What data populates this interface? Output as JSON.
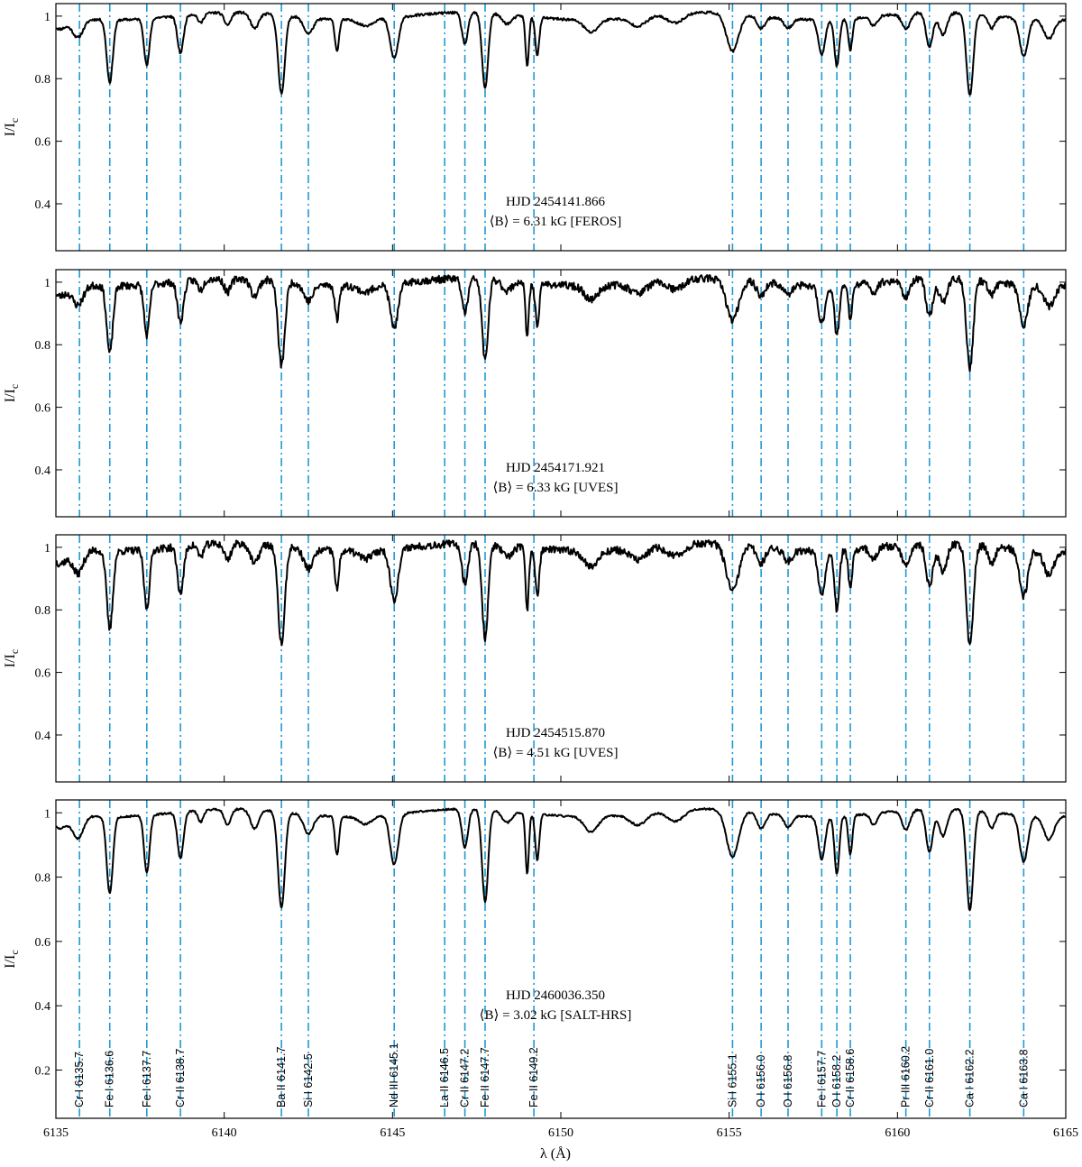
{
  "chart_data": {
    "type": "line",
    "xlabel": "λ (Å)",
    "ylabel": "I/I",
    "ylabel_subscript": "c",
    "xlim": [
      6135,
      6165
    ],
    "x_ticks": [
      6135,
      6140,
      6145,
      6150,
      6155,
      6160,
      6165
    ],
    "x_tick_labels": [
      "6135",
      "6140",
      "6145",
      "6150",
      "6155",
      "6160",
      "6165"
    ],
    "line_color": "#1e9ad6",
    "spectrum_color": "#000000",
    "lines": [
      {
        "label": "Cr I 6135.7",
        "wavelength": 6135.7
      },
      {
        "label": "Fe I 6136.6",
        "wavelength": 6136.6
      },
      {
        "label": "Fe I 6137.7",
        "wavelength": 6137.7
      },
      {
        "label": "Cr II 6138.7",
        "wavelength": 6138.7
      },
      {
        "label": "Ba II 6141.7",
        "wavelength": 6141.7
      },
      {
        "label": "Si I 6142.5",
        "wavelength": 6142.5
      },
      {
        "label": "Nd III 6145.1",
        "wavelength": 6145.05
      },
      {
        "label": "La II 6146.5",
        "wavelength": 6146.55
      },
      {
        "label": "Cr II 6147.2",
        "wavelength": 6147.15
      },
      {
        "label": "Fe II 6147.7",
        "wavelength": 6147.75
      },
      {
        "label": "Fe II 6149.2",
        "wavelength": 6149.2
      },
      {
        "label": "Si I 6155.1",
        "wavelength": 6155.1
      },
      {
        "label": "O I 6156.0",
        "wavelength": 6155.95
      },
      {
        "label": "O I 6156.8",
        "wavelength": 6156.75
      },
      {
        "label": "Fe I 6157.7",
        "wavelength": 6157.75
      },
      {
        "label": "O I 6158.2",
        "wavelength": 6158.2
      },
      {
        "label": "Cr II 6158.6",
        "wavelength": 6158.6
      },
      {
        "label": "Pr III 6160.2",
        "wavelength": 6160.25
      },
      {
        "label": "Cr II 6161.0",
        "wavelength": 6160.95
      },
      {
        "label": "Ca I 6162.2",
        "wavelength": 6162.15
      },
      {
        "label": "Ca I 6163.8",
        "wavelength": 6163.75
      }
    ],
    "panels": [
      {
        "id": "feros",
        "hjd_text": "HJD 2454141.866",
        "field_text": "⟨B⟩ = 6.31 kG [FEROS]",
        "ylim": [
          0.25,
          1.04
        ],
        "y_ticks": [
          0.4,
          0.6,
          0.8,
          1
        ],
        "y_tick_labels": [
          "0.4",
          "0.6",
          "0.8",
          "1"
        ],
        "noise": 0.004,
        "seed": 11,
        "depth_scale": 1.0,
        "line_label_short": true
      },
      {
        "id": "uves1",
        "hjd_text": "HJD 2454171.921",
        "field_text": "⟨B⟩ = 6.33 kG [UVES]",
        "ylim": [
          0.25,
          1.04
        ],
        "y_ticks": [
          0.4,
          0.6,
          0.8,
          1
        ],
        "y_tick_labels": [
          "0.4",
          "0.6",
          "0.8",
          "1"
        ],
        "noise": 0.012,
        "seed": 23,
        "depth_scale": 1.08,
        "line_label_short": true
      },
      {
        "id": "uves2",
        "hjd_text": "HJD 2454515.870",
        "field_text": "⟨B⟩ = 4.51 kG [UVES]",
        "ylim": [
          0.25,
          1.04
        ],
        "y_ticks": [
          0.4,
          0.6,
          0.8,
          1
        ],
        "y_tick_labels": [
          "0.4",
          "0.6",
          "0.8",
          "1"
        ],
        "noise": 0.012,
        "seed": 37,
        "depth_scale": 1.25,
        "line_label_short": true
      },
      {
        "id": "salt",
        "hjd_text": "HJD 2460036.350",
        "field_text": "⟨B⟩ = 3.02 kG [SALT-HRS]",
        "ylim": [
          0.05,
          1.04
        ],
        "y_ticks": [
          0.2,
          0.4,
          0.6,
          0.8,
          1
        ],
        "y_tick_labels": [
          "0.2",
          "0.4",
          "0.6",
          "0.8",
          "1"
        ],
        "noise": 0.003,
        "seed": 51,
        "depth_scale": 1.2,
        "line_label_short": false
      }
    ],
    "absorption_features": [
      [
        6135.1,
        0.04,
        0.22
      ],
      [
        6135.65,
        0.06,
        0.16
      ],
      [
        6136.6,
        0.2,
        0.09
      ],
      [
        6137.7,
        0.15,
        0.08
      ],
      [
        6138.7,
        0.12,
        0.09
      ],
      [
        6139.3,
        0.03,
        0.08
      ],
      [
        6140.1,
        0.04,
        0.1
      ],
      [
        6140.9,
        0.05,
        0.12
      ],
      [
        6141.7,
        0.25,
        0.1
      ],
      [
        6142.5,
        0.05,
        0.14
      ],
      [
        6143.35,
        0.1,
        0.06
      ],
      [
        6144.2,
        0.02,
        0.2
      ],
      [
        6145.05,
        0.13,
        0.12
      ],
      [
        6147.15,
        0.1,
        0.09
      ],
      [
        6147.75,
        0.24,
        0.09
      ],
      [
        6148.4,
        0.03,
        0.15
      ],
      [
        6149.0,
        0.16,
        0.05
      ],
      [
        6149.3,
        0.12,
        0.06
      ],
      [
        6150.9,
        0.04,
        0.2
      ],
      [
        6152.3,
        0.03,
        0.25
      ],
      [
        6153.4,
        0.03,
        0.25
      ],
      [
        6155.1,
        0.12,
        0.18
      ],
      [
        6155.95,
        0.04,
        0.12
      ],
      [
        6156.75,
        0.03,
        0.12
      ],
      [
        6157.75,
        0.11,
        0.1
      ],
      [
        6158.2,
        0.15,
        0.07
      ],
      [
        6158.6,
        0.1,
        0.06
      ],
      [
        6159.3,
        0.03,
        0.1
      ],
      [
        6160.25,
        0.05,
        0.12
      ],
      [
        6160.95,
        0.11,
        0.1
      ],
      [
        6161.35,
        0.07,
        0.12
      ],
      [
        6162.15,
        0.26,
        0.1
      ],
      [
        6162.8,
        0.04,
        0.1
      ],
      [
        6163.75,
        0.12,
        0.12
      ],
      [
        6164.5,
        0.06,
        0.15
      ]
    ]
  }
}
